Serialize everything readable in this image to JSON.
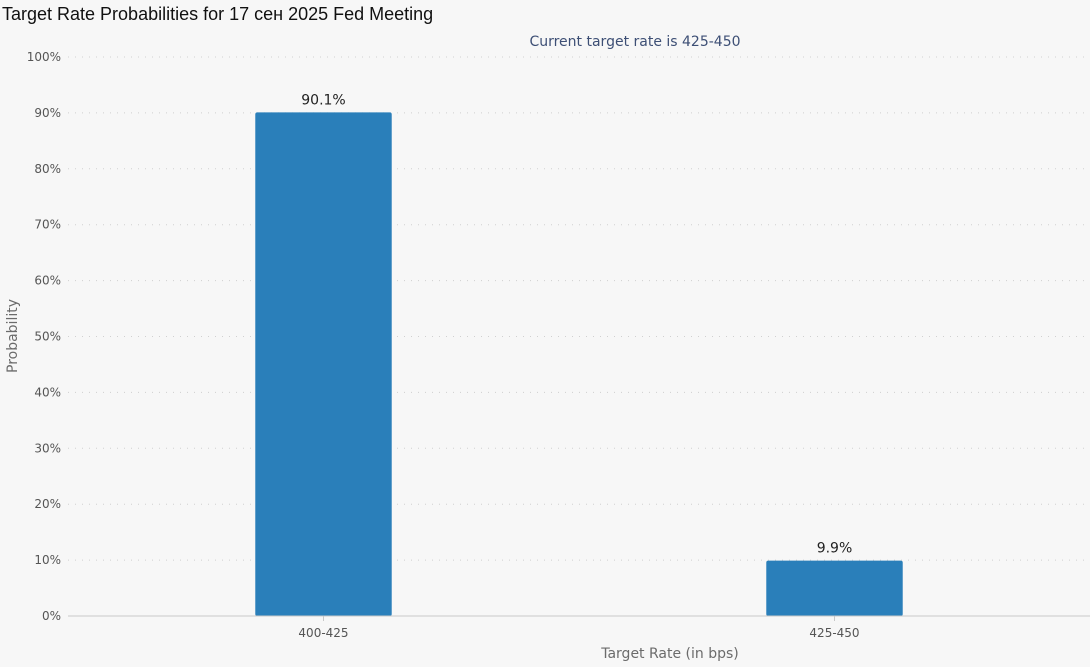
{
  "title": "Target Rate Probabilities for 17 сен 2025 Fed Meeting",
  "chart_data": {
    "type": "bar",
    "subtitle": "Current target rate is 425-450",
    "xlabel": "Target Rate (in bps)",
    "ylabel": "Probability",
    "categories": [
      "400-425",
      "425-450"
    ],
    "values": [
      90.1,
      9.9
    ],
    "data_labels": [
      "90.1%",
      "9.9%"
    ],
    "ylim": [
      0,
      100
    ],
    "yticks": [
      0,
      10,
      20,
      30,
      40,
      50,
      60,
      70,
      80,
      90,
      100
    ],
    "ytick_labels": [
      "0%",
      "10%",
      "20%",
      "30%",
      "40%",
      "50%",
      "60%",
      "70%",
      "80%",
      "90%",
      "100%"
    ],
    "grid": true,
    "legend": "none",
    "bar_color": "#2a7fba"
  }
}
